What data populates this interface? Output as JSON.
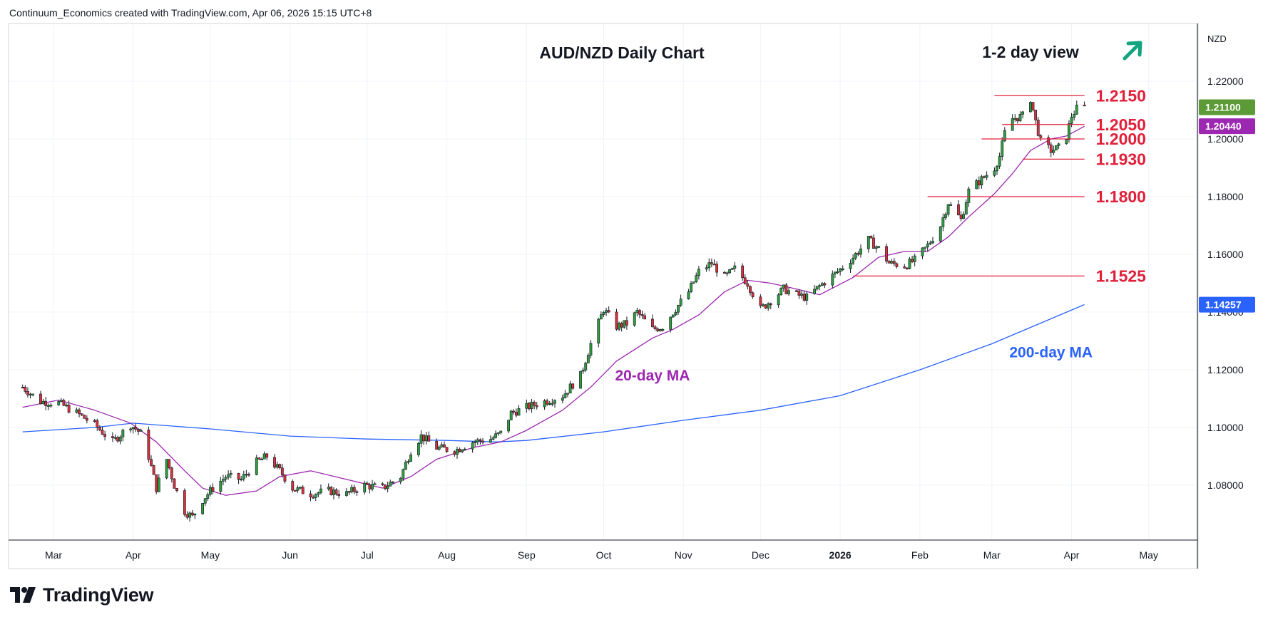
{
  "header": {
    "credit": "Continuum_Economics created with TradingView.com, Apr 06, 2026 15:15 UTC+8"
  },
  "footer": {
    "brand": "TradingView"
  },
  "colors": {
    "up": "#26a69a",
    "down": "#ef5350",
    "candle_up": "#2e9e3e",
    "candle_down": "#d8303d",
    "ma20": "#9c27b0",
    "ma200": "#2962ff",
    "levels": "#e0203a",
    "grid": "#f0f3fa",
    "price_label_bg": "#5b9a36",
    "ma20_label_bg": "#9c27b0",
    "ma200_label_bg": "#2962ff"
  },
  "chart_data": {
    "type": "candlestick",
    "title": "AUD/NZD Daily Chart",
    "view_label": "1-2 day view",
    "view_icon": "arrow-up-right-icon",
    "currency": "NZD",
    "y_ticks": [
      "1.22000",
      "1.20000",
      "1.18000",
      "1.16000",
      "1.14000",
      "1.12000",
      "1.10000",
      "1.08000"
    ],
    "ylim": [
      1.0625,
      1.2395
    ],
    "x_ticks": [
      "Mar",
      "Apr",
      "May",
      "Jun",
      "Jul",
      "Aug",
      "Sep",
      "Oct",
      "Nov",
      "Dec",
      "2026",
      "Feb",
      "Mar",
      "Apr",
      "May"
    ],
    "x_tick_dates": [
      "2025-03-01",
      "2025-04-01",
      "2025-05-01",
      "2025-06-01",
      "2025-07-01",
      "2025-08-01",
      "2025-09-01",
      "2025-10-01",
      "2025-11-01",
      "2025-12-01",
      "2026-01-01",
      "2026-02-01",
      "2026-03-01",
      "2026-04-01",
      "2026-05-01"
    ],
    "price_labels": [
      {
        "name": "last",
        "value": "1.21100"
      },
      {
        "name": "20-day MA",
        "value": "1.20440"
      },
      {
        "name": "200-day MA",
        "value": "1.14257"
      }
    ],
    "levels": [
      {
        "label": "1.2150",
        "value": 1.215,
        "from": "2026-03-02",
        "to": "2026-04-06"
      },
      {
        "label": "1.2050",
        "value": 1.205,
        "from": "2026-03-05",
        "to": "2026-04-06"
      },
      {
        "label": "1.2000",
        "value": 1.2,
        "from": "2026-02-25",
        "to": "2026-04-06"
      },
      {
        "label": "1.1930",
        "value": 1.193,
        "from": "2026-03-13",
        "to": "2026-04-06"
      },
      {
        "label": "1.1800",
        "value": 1.18,
        "from": "2026-02-04",
        "to": "2026-04-06"
      },
      {
        "label": "1.1525",
        "value": 1.1525,
        "from": "2026-01-06",
        "to": "2026-04-06"
      }
    ],
    "annotations": [
      {
        "text": "20-day MA",
        "date": "2025-10-20",
        "value": 1.1163
      },
      {
        "text": "200-day MA",
        "date": "2026-03-24",
        "value": 1.1243
      }
    ],
    "close_path": [
      [
        "2025-02-17",
        1.114
      ],
      [
        "2025-02-24",
        1.109
      ],
      [
        "2025-03-03",
        1.1085
      ],
      [
        "2025-03-10",
        1.105
      ],
      [
        "2025-03-17",
        1.101
      ],
      [
        "2025-03-24",
        1.095
      ],
      [
        "2025-03-31",
        1.101
      ],
      [
        "2025-04-04",
        1.098
      ],
      [
        "2025-04-07",
        1.09
      ],
      [
        "2025-04-10",
        1.079
      ],
      [
        "2025-04-14",
        1.089
      ],
      [
        "2025-04-17",
        1.08
      ],
      [
        "2025-04-21",
        1.071
      ],
      [
        "2025-04-24",
        1.069
      ],
      [
        "2025-04-28",
        1.075
      ],
      [
        "2025-05-02",
        1.079
      ],
      [
        "2025-05-07",
        1.083
      ],
      [
        "2025-05-13",
        1.082
      ],
      [
        "2025-05-19",
        1.088
      ],
      [
        "2025-05-23",
        1.09
      ],
      [
        "2025-05-28",
        1.085
      ],
      [
        "2025-06-02",
        1.079
      ],
      [
        "2025-06-09",
        1.077
      ],
      [
        "2025-06-16",
        1.078
      ],
      [
        "2025-06-23",
        1.077
      ],
      [
        "2025-06-30",
        1.08
      ],
      [
        "2025-07-07",
        1.079
      ],
      [
        "2025-07-14",
        1.083
      ],
      [
        "2025-07-18",
        1.092
      ],
      [
        "2025-07-22",
        1.097
      ],
      [
        "2025-07-28",
        1.093
      ],
      [
        "2025-08-04",
        1.092
      ],
      [
        "2025-08-11",
        1.095
      ],
      [
        "2025-08-18",
        1.096
      ],
      [
        "2025-08-22",
        1.098
      ],
      [
        "2025-08-26",
        1.105
      ],
      [
        "2025-09-01",
        1.107
      ],
      [
        "2025-09-08",
        1.109
      ],
      [
        "2025-09-15",
        1.111
      ],
      [
        "2025-09-22",
        1.118
      ],
      [
        "2025-09-26",
        1.129
      ],
      [
        "2025-10-01",
        1.141
      ],
      [
        "2025-10-06",
        1.135
      ],
      [
        "2025-10-10",
        1.136
      ],
      [
        "2025-10-14",
        1.14
      ],
      [
        "2025-10-20",
        1.134
      ],
      [
        "2025-10-24",
        1.135
      ],
      [
        "2025-10-28",
        1.14
      ],
      [
        "2025-11-03",
        1.147
      ],
      [
        "2025-11-07",
        1.154
      ],
      [
        "2025-11-12",
        1.157
      ],
      [
        "2025-11-17",
        1.152
      ],
      [
        "2025-11-21",
        1.155
      ],
      [
        "2025-11-26",
        1.15
      ],
      [
        "2025-12-01",
        1.141
      ],
      [
        "2025-12-05",
        1.144
      ],
      [
        "2025-12-10",
        1.148
      ],
      [
        "2025-12-15",
        1.146
      ],
      [
        "2025-12-19",
        1.145
      ],
      [
        "2025-12-24",
        1.149
      ],
      [
        "2025-12-31",
        1.154
      ],
      [
        "2026-01-06",
        1.159
      ],
      [
        "2026-01-12",
        1.165
      ],
      [
        "2026-01-16",
        1.162
      ],
      [
        "2026-01-20",
        1.157
      ],
      [
        "2026-01-26",
        1.156
      ],
      [
        "2026-01-30",
        1.158
      ],
      [
        "2026-02-04",
        1.163
      ],
      [
        "2026-02-09",
        1.17
      ],
      [
        "2026-02-12",
        1.178
      ],
      [
        "2026-02-17",
        1.172
      ],
      [
        "2026-02-20",
        1.182
      ],
      [
        "2026-02-25",
        1.186
      ],
      [
        "2026-03-02",
        1.19
      ],
      [
        "2026-03-04",
        1.194
      ],
      [
        "2026-03-06",
        1.202
      ],
      [
        "2026-03-09",
        1.207
      ],
      [
        "2026-03-13",
        1.208
      ],
      [
        "2026-03-16",
        1.214
      ],
      [
        "2026-03-18",
        1.206
      ],
      [
        "2026-03-20",
        1.199
      ],
      [
        "2026-03-24",
        1.196
      ],
      [
        "2026-03-27",
        1.197
      ],
      [
        "2026-03-30",
        1.201
      ],
      [
        "2026-04-01",
        1.208
      ],
      [
        "2026-04-03",
        1.2105
      ],
      [
        "2026-04-06",
        1.211
      ]
    ],
    "ma20_path": [
      [
        "2025-02-17",
        1.107
      ],
      [
        "2025-03-03",
        1.1095
      ],
      [
        "2025-03-17",
        1.106
      ],
      [
        "2025-03-31",
        1.1015
      ],
      [
        "2025-04-10",
        1.095
      ],
      [
        "2025-04-21",
        1.085
      ],
      [
        "2025-04-28",
        1.079
      ],
      [
        "2025-05-07",
        1.0765
      ],
      [
        "2025-05-19",
        1.078
      ],
      [
        "2025-05-28",
        1.083
      ],
      [
        "2025-06-09",
        1.085
      ],
      [
        "2025-06-23",
        1.082
      ],
      [
        "2025-07-07",
        1.079
      ],
      [
        "2025-07-18",
        1.083
      ],
      [
        "2025-07-28",
        1.089
      ],
      [
        "2025-08-11",
        1.093
      ],
      [
        "2025-08-22",
        1.095
      ],
      [
        "2025-09-01",
        1.099
      ],
      [
        "2025-09-15",
        1.106
      ],
      [
        "2025-09-26",
        1.114
      ],
      [
        "2025-10-06",
        1.123
      ],
      [
        "2025-10-20",
        1.131
      ],
      [
        "2025-10-28",
        1.134
      ],
      [
        "2025-11-07",
        1.139
      ],
      [
        "2025-11-17",
        1.147
      ],
      [
        "2025-11-26",
        1.151
      ],
      [
        "2025-12-05",
        1.15
      ],
      [
        "2025-12-15",
        1.148
      ],
      [
        "2025-12-24",
        1.146
      ],
      [
        "2026-01-06",
        1.152
      ],
      [
        "2026-01-16",
        1.159
      ],
      [
        "2026-01-26",
        1.161
      ],
      [
        "2026-02-04",
        1.161
      ],
      [
        "2026-02-12",
        1.166
      ],
      [
        "2026-02-20",
        1.173
      ],
      [
        "2026-03-02",
        1.181
      ],
      [
        "2026-03-09",
        1.188
      ],
      [
        "2026-03-16",
        1.196
      ],
      [
        "2026-03-24",
        1.2
      ],
      [
        "2026-03-30",
        1.201
      ],
      [
        "2026-04-06",
        1.2044
      ]
    ],
    "ma200_path": [
      [
        "2025-02-17",
        1.0985
      ],
      [
        "2025-03-17",
        1.1
      ],
      [
        "2025-04-01",
        1.1015
      ],
      [
        "2025-05-01",
        1.0995
      ],
      [
        "2025-06-01",
        1.097
      ],
      [
        "2025-07-01",
        1.096
      ],
      [
        "2025-08-01",
        1.0955
      ],
      [
        "2025-08-20",
        1.095
      ],
      [
        "2025-09-01",
        1.0955
      ],
      [
        "2025-10-01",
        1.0985
      ],
      [
        "2025-11-01",
        1.1025
      ],
      [
        "2025-12-01",
        1.106
      ],
      [
        "2026-01-01",
        1.111
      ],
      [
        "2026-02-01",
        1.12
      ],
      [
        "2026-03-01",
        1.129
      ],
      [
        "2026-04-06",
        1.1426
      ]
    ]
  }
}
